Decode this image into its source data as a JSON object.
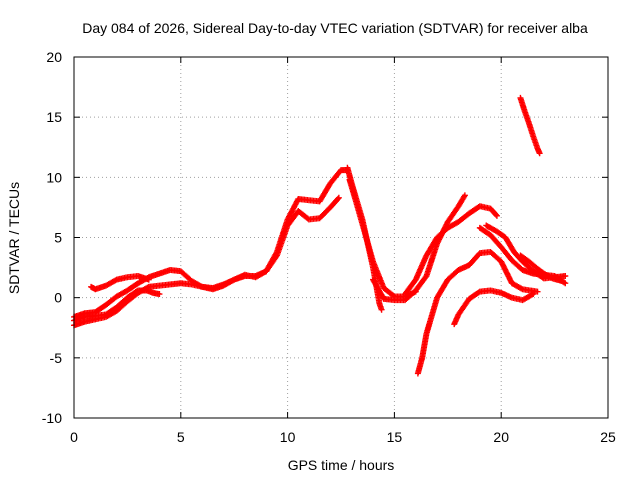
{
  "chart_data": {
    "type": "scatter",
    "title": "Day 084 of 2026, Sidereal Day-to-day VTEC variation (SDTVAR) for receiver alba",
    "xlabel": "GPS time / hours",
    "ylabel": "SDTVAR / TECUs",
    "xlim": [
      0,
      25
    ],
    "ylim": [
      -10,
      20
    ],
    "x_ticks": [
      0,
      5,
      10,
      15,
      20,
      25
    ],
    "y_ticks": [
      -10,
      -5,
      0,
      5,
      10,
      15,
      20
    ],
    "grid": true,
    "marker": "+",
    "color": "#ff0000",
    "series": [
      {
        "name": "track-1",
        "points": [
          [
            0,
            -2.3
          ],
          [
            0.5,
            -2.0
          ],
          [
            1,
            -1.8
          ],
          [
            1.5,
            -1.6
          ],
          [
            2,
            -1.1
          ],
          [
            2.5,
            -0.3
          ],
          [
            3,
            0.4
          ],
          [
            3.5,
            0.9
          ],
          [
            4,
            1.0
          ],
          [
            4.5,
            1.1
          ],
          [
            5,
            1.2
          ],
          [
            5.5,
            1.1
          ],
          [
            6,
            0.9
          ],
          [
            6.5,
            0.7
          ],
          [
            7,
            1.0
          ],
          [
            7.5,
            1.5
          ],
          [
            8,
            1.8
          ],
          [
            8.5,
            1.8
          ],
          [
            9,
            2.2
          ],
          [
            9.5,
            3.5
          ],
          [
            10,
            6.0
          ],
          [
            10.5,
            7.2
          ],
          [
            11,
            6.5
          ],
          [
            11.5,
            6.6
          ],
          [
            12,
            7.5
          ],
          [
            12.4,
            8.3
          ]
        ]
      },
      {
        "name": "track-2",
        "points": [
          [
            0,
            -1.9
          ],
          [
            0.5,
            -1.6
          ],
          [
            1,
            -1.5
          ],
          [
            1.5,
            -1.4
          ],
          [
            2,
            -0.8
          ],
          [
            2.5,
            0.0
          ],
          [
            3,
            0.6
          ],
          [
            3.4,
            0.6
          ],
          [
            3.7,
            0.4
          ],
          [
            4,
            0.3
          ]
        ]
      },
      {
        "name": "track-3",
        "points": [
          [
            0,
            -1.6
          ],
          [
            0.5,
            -1.3
          ],
          [
            1,
            -1.2
          ],
          [
            1.5,
            -0.6
          ],
          [
            2,
            0.1
          ],
          [
            2.5,
            0.6
          ],
          [
            3,
            1.2
          ],
          [
            3.5,
            1.7
          ],
          [
            4,
            2.0
          ],
          [
            4.5,
            2.3
          ],
          [
            5,
            2.2
          ],
          [
            5.5,
            1.4
          ],
          [
            6,
            0.9
          ],
          [
            6.5,
            0.8
          ],
          [
            7,
            1.1
          ],
          [
            7.5,
            1.5
          ],
          [
            8,
            1.9
          ],
          [
            8.5,
            1.7
          ],
          [
            9,
            2.2
          ],
          [
            9.5,
            3.8
          ],
          [
            10,
            6.5
          ],
          [
            10.5,
            8.2
          ],
          [
            11,
            8.1
          ],
          [
            11.5,
            8.0
          ],
          [
            12,
            9.5
          ],
          [
            12.5,
            10.6
          ],
          [
            12.8,
            10.6
          ]
        ]
      },
      {
        "name": "track-4",
        "points": [
          [
            0.8,
            0.9
          ],
          [
            1,
            0.7
          ],
          [
            1.5,
            1.0
          ],
          [
            2,
            1.5
          ],
          [
            2.5,
            1.7
          ],
          [
            3,
            1.8
          ],
          [
            3.5,
            1.5
          ]
        ]
      },
      {
        "name": "track-5",
        "points": [
          [
            12.8,
            10.8
          ],
          [
            13,
            9.5
          ],
          [
            13.5,
            6.5
          ],
          [
            14,
            2.5
          ],
          [
            14.3,
            -0.5
          ],
          [
            14.4,
            -1.0
          ]
        ]
      },
      {
        "name": "track-6",
        "points": [
          [
            12.9,
            9.8
          ],
          [
            13.2,
            8.0
          ],
          [
            13.6,
            5.5
          ],
          [
            14,
            3.0
          ],
          [
            14.5,
            0.8
          ],
          [
            15,
            0.1
          ],
          [
            15.5,
            0.1
          ],
          [
            16,
            0.5
          ]
        ]
      },
      {
        "name": "track-7",
        "points": [
          [
            14,
            1.5
          ],
          [
            14.5,
            -0.1
          ],
          [
            15,
            -0.2
          ],
          [
            15.5,
            -0.2
          ],
          [
            16,
            0.6
          ],
          [
            16.5,
            1.8
          ],
          [
            17,
            4.5
          ],
          [
            17.5,
            6.3
          ],
          [
            18,
            7.6
          ],
          [
            18.3,
            8.5
          ]
        ]
      },
      {
        "name": "track-8",
        "points": [
          [
            15.5,
            0.3
          ],
          [
            16,
            1.5
          ],
          [
            16.5,
            3.5
          ],
          [
            17,
            5.0
          ],
          [
            17.5,
            5.8
          ],
          [
            18,
            6.3
          ],
          [
            18.5,
            7.0
          ],
          [
            19,
            7.6
          ],
          [
            19.5,
            7.4
          ],
          [
            19.8,
            6.8
          ]
        ]
      },
      {
        "name": "track-9",
        "points": [
          [
            16.1,
            -6.3
          ],
          [
            16.3,
            -5.0
          ],
          [
            16.5,
            -3.0
          ],
          [
            17,
            0.0
          ],
          [
            17.5,
            1.5
          ],
          [
            18,
            2.3
          ],
          [
            18.5,
            2.7
          ],
          [
            19,
            3.7
          ],
          [
            19.5,
            3.8
          ],
          [
            20,
            3.0
          ],
          [
            20.5,
            1.2
          ],
          [
            21,
            0.7
          ],
          [
            21.7,
            0.5
          ]
        ]
      },
      {
        "name": "track-10",
        "points": [
          [
            17.8,
            -2.2
          ],
          [
            18,
            -1.4
          ],
          [
            18.5,
            -0.1
          ],
          [
            19,
            0.5
          ],
          [
            19.5,
            0.6
          ],
          [
            20,
            0.4
          ],
          [
            20.5,
            0.0
          ],
          [
            21,
            -0.2
          ],
          [
            21.5,
            0.3
          ]
        ]
      },
      {
        "name": "track-11",
        "points": [
          [
            19,
            5.8
          ],
          [
            19.5,
            5.2
          ],
          [
            20,
            4.2
          ],
          [
            20.5,
            3.1
          ],
          [
            21,
            2.3
          ],
          [
            21.5,
            2.0
          ],
          [
            22,
            1.9
          ],
          [
            22.5,
            1.8
          ],
          [
            23,
            1.2
          ]
        ]
      },
      {
        "name": "track-12",
        "points": [
          [
            19.3,
            6.0
          ],
          [
            19.8,
            5.5
          ],
          [
            20.2,
            5.0
          ],
          [
            20.6,
            3.8
          ],
          [
            21,
            3.0
          ],
          [
            21.5,
            2.2
          ],
          [
            22,
            1.6
          ],
          [
            22.5,
            1.7
          ],
          [
            23,
            1.8
          ]
        ]
      },
      {
        "name": "track-13",
        "points": [
          [
            20.9,
            3.5
          ],
          [
            21.3,
            3.0
          ],
          [
            21.7,
            2.4
          ],
          [
            22,
            2.0
          ],
          [
            22.4,
            1.6
          ],
          [
            22.8,
            1.4
          ]
        ]
      },
      {
        "name": "track-14",
        "points": [
          [
            20.9,
            16.6
          ],
          [
            21.1,
            15.5
          ],
          [
            21.3,
            14.5
          ],
          [
            21.5,
            13.4
          ],
          [
            21.7,
            12.4
          ],
          [
            21.8,
            12.0
          ]
        ]
      }
    ]
  }
}
